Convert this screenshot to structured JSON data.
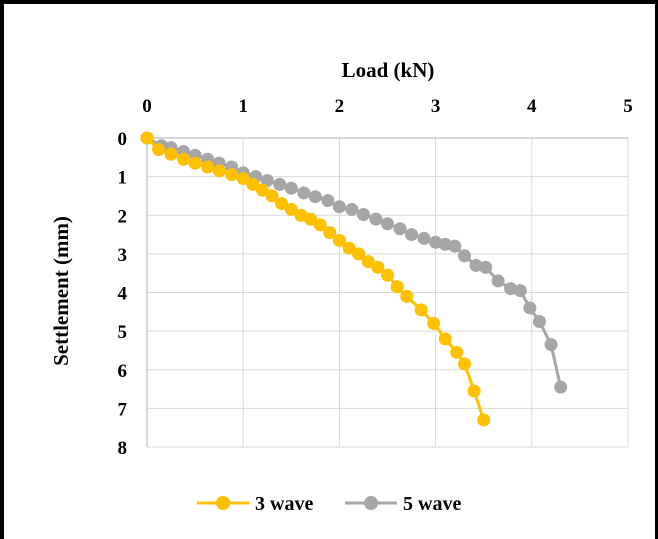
{
  "chart_data": {
    "type": "scatter",
    "title": "",
    "xlabel": "Load (kN)",
    "ylabel": "Settlement (mm)",
    "xlim": [
      0,
      5
    ],
    "ylim": [
      0,
      8
    ],
    "y_inverted": true,
    "x_axis_position": "top",
    "x_ticks": [
      "0",
      "1",
      "2",
      "3",
      "4",
      "5"
    ],
    "y_ticks": [
      "0",
      "1",
      "2",
      "3",
      "4",
      "5",
      "6",
      "7",
      "8"
    ],
    "grid": true,
    "legend_position": "bottom",
    "series": [
      {
        "name": "3 wave",
        "color": "#ffc000",
        "points": [
          [
            0,
            0
          ],
          [
            0.12,
            0.3
          ],
          [
            0.25,
            0.42
          ],
          [
            0.38,
            0.55
          ],
          [
            0.5,
            0.65
          ],
          [
            0.63,
            0.75
          ],
          [
            0.75,
            0.85
          ],
          [
            0.88,
            0.95
          ],
          [
            1.0,
            1.05
          ],
          [
            1.1,
            1.2
          ],
          [
            1.2,
            1.35
          ],
          [
            1.3,
            1.5
          ],
          [
            1.4,
            1.7
          ],
          [
            1.5,
            1.85
          ],
          [
            1.6,
            2.0
          ],
          [
            1.7,
            2.1
          ],
          [
            1.8,
            2.25
          ],
          [
            1.9,
            2.45
          ],
          [
            2.0,
            2.65
          ],
          [
            2.1,
            2.85
          ],
          [
            2.2,
            3.0
          ],
          [
            2.3,
            3.2
          ],
          [
            2.4,
            3.35
          ],
          [
            2.5,
            3.55
          ],
          [
            2.6,
            3.85
          ],
          [
            2.7,
            4.1
          ],
          [
            2.85,
            4.45
          ],
          [
            2.98,
            4.8
          ],
          [
            3.1,
            5.2
          ],
          [
            3.22,
            5.55
          ],
          [
            3.3,
            5.85
          ],
          [
            3.4,
            6.55
          ],
          [
            3.5,
            7.3
          ]
        ]
      },
      {
        "name": "5 wave",
        "color": "#a6a6a6",
        "points": [
          [
            0,
            0
          ],
          [
            0.15,
            0.2
          ],
          [
            0.25,
            0.25
          ],
          [
            0.38,
            0.35
          ],
          [
            0.5,
            0.45
          ],
          [
            0.63,
            0.55
          ],
          [
            0.75,
            0.65
          ],
          [
            0.88,
            0.75
          ],
          [
            1.0,
            0.9
          ],
          [
            1.13,
            1.0
          ],
          [
            1.25,
            1.1
          ],
          [
            1.38,
            1.2
          ],
          [
            1.5,
            1.3
          ],
          [
            1.63,
            1.42
          ],
          [
            1.75,
            1.52
          ],
          [
            1.88,
            1.62
          ],
          [
            2.0,
            1.78
          ],
          [
            2.13,
            1.85
          ],
          [
            2.25,
            1.98
          ],
          [
            2.38,
            2.1
          ],
          [
            2.5,
            2.22
          ],
          [
            2.63,
            2.35
          ],
          [
            2.75,
            2.5
          ],
          [
            2.88,
            2.6
          ],
          [
            3.0,
            2.7
          ],
          [
            3.1,
            2.75
          ],
          [
            3.2,
            2.8
          ],
          [
            3.3,
            3.05
          ],
          [
            3.42,
            3.3
          ],
          [
            3.52,
            3.35
          ],
          [
            3.65,
            3.7
          ],
          [
            3.78,
            3.9
          ],
          [
            3.88,
            3.95
          ],
          [
            3.98,
            4.4
          ],
          [
            4.08,
            4.75
          ],
          [
            4.2,
            5.35
          ],
          [
            4.3,
            6.45
          ]
        ]
      }
    ]
  }
}
